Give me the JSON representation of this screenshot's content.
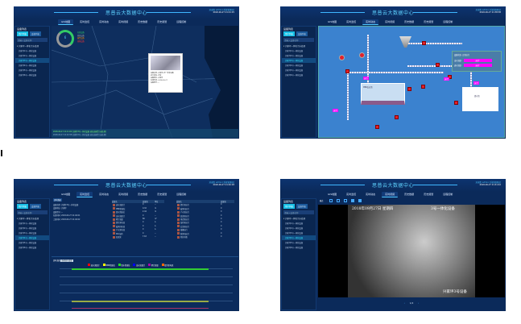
{
  "header": {
    "title": "思普云大数据中心",
    "user": "欢迎您 admin [系统管理员]",
    "datetimes": [
      "2018-09-27 21:21:15",
      "2018-09-27 21:38:38",
      "2018-09-27 21:40:18",
      "2018-09-27 21:41:42"
    ]
  },
  "nav": [
    "GIS地图",
    "实时监控",
    "实时动态",
    "实时视频",
    "历史数据",
    "历史报警",
    "远程控制"
  ],
  "sidebar": {
    "heading": "设备列表",
    "tabs": [
      "用户列表",
      "设备列表"
    ],
    "search_placeholder": "请输入设备名称",
    "group": "▾ 兴家坪一体化污水处理",
    "items": [
      "兴家坪1号一体化设备",
      "兴家坪2号一体化设备",
      "兴家坪3号一体化设备",
      "兴家坪4号一体化设备",
      "兴家坪5号一体化设备",
      "兴家坪6号一体化设备"
    ]
  },
  "map": {
    "legend": [
      "在线设备",
      "离线设备",
      "报警设备",
      "故障设备"
    ],
    "gauge_value": "6",
    "popup": [
      "设备名称: 兴家坪3号一体化设备",
      "运行状态: 正常",
      "设备地址: 兴家坪",
      "在线时间: 2018-09-27",
      "设备型号: --"
    ],
    "alarms": [
      "2018-09-27 21:21:04 兴家坪3号一体化设备 液位高报警 [未处理]",
      "2018-09-27 21:20:58 兴家坪2号一体化设备 液位高报警 [未处理]"
    ]
  },
  "process": {
    "tags": [
      "运行",
      "运行",
      "运行",
      "运行",
      "运行"
    ],
    "labels": [
      "MBR反应池",
      "清水池",
      "提升泵",
      "鼓风机",
      "PAC加药"
    ],
    "info": [
      "设备状态: 正常运行",
      "出水流量: ",
      "进水流量: "
    ],
    "info_values": [
      "运行",
      "运行"
    ]
  },
  "monitor": {
    "section": "实时数据",
    "meta": [
      "设备名称: 兴家坪3号一体化设备",
      "设备地址: 兴家坪",
      "设备型号: --",
      "在线时间: 2018-09-27 21:40:01",
      "上线时间: 2018-09-27 21:40:02"
    ],
    "headers": [
      "变量名",
      "变量值",
      "单位"
    ],
    "rows": [
      [
        "进水流量计",
        "0",
        "--"
      ],
      [
        "MBR池液位",
        "0.32",
        "m"
      ],
      [
        "清水池液位",
        "2.44",
        "m"
      ],
      [
        "出水流量计",
        "0",
        "--"
      ],
      [
        "累计流量",
        "80",
        "m³"
      ],
      [
        "提升泵电流",
        "0",
        "A"
      ],
      [
        "鼓风机电流",
        "0",
        "A"
      ],
      [
        "产水泵电流",
        "0",
        "A"
      ],
      [
        "PAC加药",
        "0",
        "--"
      ],
      [
        "回流泵",
        "7.63",
        "--"
      ]
    ],
    "headers2": [
      "变量名",
      "变量值"
    ],
    "rows2": [
      [
        "提升泵运行",
        "0"
      ],
      [
        "鼓风机运行",
        "0"
      ],
      [
        "产水泵运行",
        "0"
      ],
      [
        "回流泵运行",
        "0"
      ],
      [
        "排泥泵运行",
        "0"
      ],
      [
        "加药泵运行",
        "0"
      ],
      [
        "反洗泵运行",
        "0"
      ],
      [
        "格栅运行",
        "0"
      ],
      [
        "搅拌机运行",
        "0"
      ],
      [
        "紫外消毒",
        "0"
      ]
    ],
    "trend_title": "实时曲线",
    "trend_btn": "选择显示变量",
    "series": [
      {
        "name": "进水流量计",
        "color": "#ff0000"
      },
      {
        "name": "MBR池液位",
        "color": "#ffff00"
      },
      {
        "name": "清水池液位",
        "color": "#22dd22"
      },
      {
        "name": "出水流量计",
        "color": "#0000ff"
      },
      {
        "name": "累计流量",
        "color": "#aa00aa"
      },
      {
        "name": "提升泵电流",
        "color": "#ff6600"
      }
    ],
    "yticks": [
      "3",
      "2.5",
      "2",
      "1.5",
      "1",
      "0.5",
      "0"
    ]
  },
  "video": {
    "mode_label": "模式",
    "overlay_date": "2018年09月27日 星期四",
    "overlay_title": "3号一体化设备",
    "overlay_name": "兴家坪3号设备",
    "pager": "1/2"
  }
}
